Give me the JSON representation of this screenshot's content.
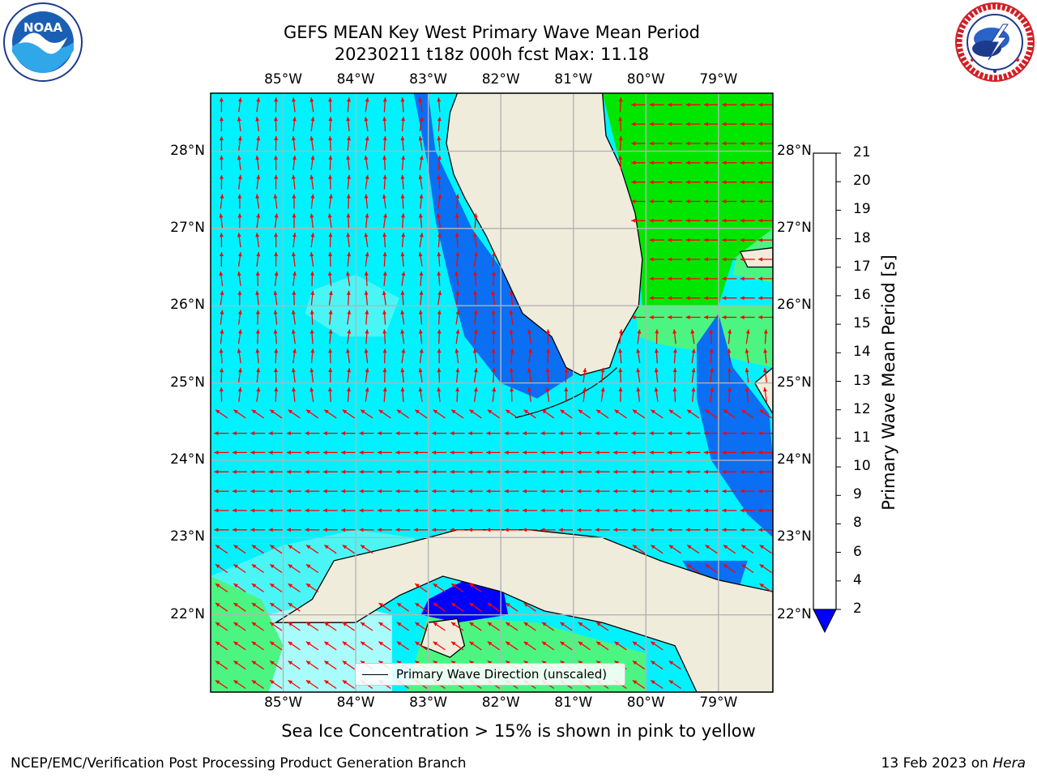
{
  "title": {
    "line1": "GEFS MEAN Key West Primary Wave Mean Period",
    "line2": "20230211 t18z 000h fcst   Max: 11.18"
  },
  "logos": {
    "noaa": {
      "name": "noaa-logo",
      "text": "NOAA"
    },
    "nws": {
      "name": "national-weather-service-logo"
    }
  },
  "map": {
    "lon_ticks": [
      "85°W",
      "84°W",
      "83°W",
      "82°W",
      "81°W",
      "80°W",
      "79°W"
    ],
    "lat_ticks": [
      "28°N",
      "27°N",
      "26°N",
      "25°N",
      "24°N",
      "23°N",
      "22°N"
    ],
    "lon_range": [
      -86.0,
      -78.25
    ],
    "lat_range": [
      21.0,
      28.75
    ]
  },
  "colorbar": {
    "label": "Primary Wave Mean Period [s]",
    "ticks": [
      "21",
      "20",
      "19",
      "18",
      "17",
      "16",
      "15",
      "14",
      "13",
      "12",
      "11",
      "10",
      "9",
      "8",
      "6",
      "4",
      "2"
    ],
    "levels": [
      2,
      4,
      6,
      8,
      9,
      10,
      11,
      12,
      13,
      14,
      15,
      16,
      17,
      18,
      19,
      20,
      21
    ],
    "colors": [
      "#0a6ff2",
      "#00f2ff",
      "#4cf5f5",
      "#a8fcfc",
      "#4cf582",
      "#00e600",
      "#55ee00",
      "#a9f200",
      "#d4f500",
      "#f0f500",
      "#ffff00",
      "#ffe000",
      "#ffbe00",
      "#ff9400",
      "#ff6400",
      "#ff3200"
    ],
    "extend_under_color": "#0000ff"
  },
  "legend": {
    "label": "Primary Wave Direction (unscaled)"
  },
  "footer": {
    "sea_ice_note": "Sea Ice Concentration > 15% is shown in pink to yellow",
    "credit": "NCEP/EMC/Verification Post Processing Product Generation Branch",
    "date": "13 Feb 2023 on ",
    "host": "Hera"
  },
  "colors": {
    "land": "#efecdc",
    "arrow": "#ff0000",
    "grid": "#b4b4b4",
    "ice": "#ffc0cb"
  }
}
